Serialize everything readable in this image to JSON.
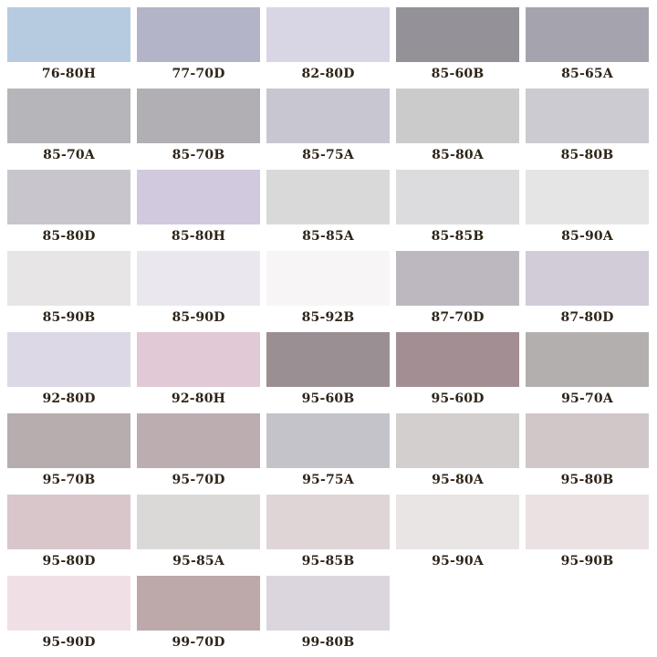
{
  "swatches": [
    {
      "label": "76-80H",
      "color": "#b6cbe0"
    },
    {
      "label": "77-70D",
      "color": "#b3b4c7"
    },
    {
      "label": "82-80D",
      "color": "#d8d6e4"
    },
    {
      "label": "85-60B",
      "color": "#959198"
    },
    {
      "label": "85-65A",
      "color": "#a5a4ae"
    },
    {
      "label": "85-70A",
      "color": "#b5b5ba"
    },
    {
      "label": "85-70B",
      "color": "#b1afb3"
    },
    {
      "label": "85-75A",
      "color": "#c8c6d0"
    },
    {
      "label": "85-80A",
      "color": "#cbcbcb"
    },
    {
      "label": "85-80B",
      "color": "#cccbd1"
    },
    {
      "label": "85-80D",
      "color": "#c8c6cc"
    },
    {
      "label": "85-80H",
      "color": "#d1c9de"
    },
    {
      "label": "85-85A",
      "color": "#d9d9d9"
    },
    {
      "label": "85-85B",
      "color": "#dcdbdd"
    },
    {
      "label": "85-90A",
      "color": "#e5e5e5"
    },
    {
      "label": "85-90B",
      "color": "#e7e5e6"
    },
    {
      "label": "85-90D",
      "color": "#eae8ee"
    },
    {
      "label": "85-92B",
      "color": "#f8f5f7"
    },
    {
      "label": "87-70D",
      "color": "#bdb8c0"
    },
    {
      "label": "87-80D",
      "color": "#d2cbd8"
    },
    {
      "label": "92-80D",
      "color": "#ddd8e5"
    },
    {
      "label": "92-80H",
      "color": "#e1c9d6"
    },
    {
      "label": "95-60B",
      "color": "#9a8f93"
    },
    {
      "label": "95-60D",
      "color": "#a28e93"
    },
    {
      "label": "95-70A",
      "color": "#b4afaf"
    },
    {
      "label": "95-70B",
      "color": "#b6adaf"
    },
    {
      "label": "95-70D",
      "color": "#bcadb1"
    },
    {
      "label": "95-75A",
      "color": "#c5c3ca"
    },
    {
      "label": "95-80A",
      "color": "#d3cfcf"
    },
    {
      "label": "95-80B",
      "color": "#d0c7c9"
    },
    {
      "label": "95-80D",
      "color": "#d8c6cb"
    },
    {
      "label": "95-85A",
      "color": "#dbd9d8"
    },
    {
      "label": "95-85B",
      "color": "#dfd5d7"
    },
    {
      "label": "95-90A",
      "color": "#e8e5e4"
    },
    {
      "label": "95-90B",
      "color": "#eae1e3"
    },
    {
      "label": "95-90D",
      "color": "#f0e0e5"
    },
    {
      "label": "99-70D",
      "color": "#bda8aa"
    },
    {
      "label": "99-80B",
      "color": "#dbd6de"
    }
  ]
}
